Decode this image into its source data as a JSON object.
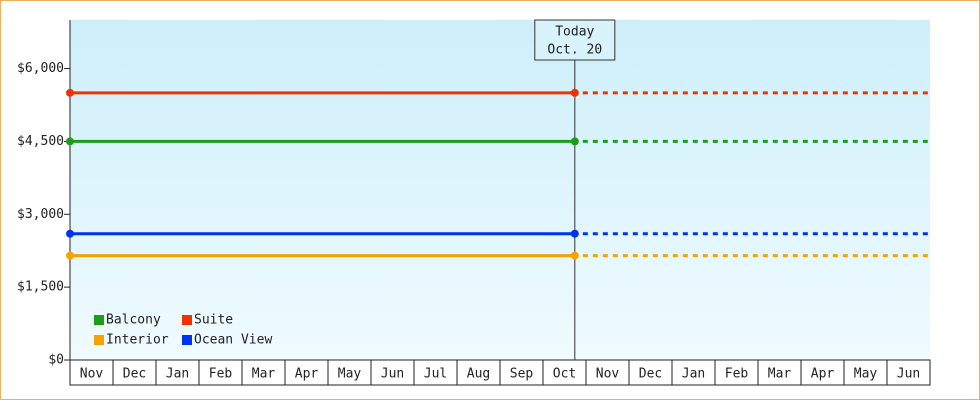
{
  "chart_data": {
    "type": "line",
    "categories": [
      "Nov",
      "Dec",
      "Jan",
      "Feb",
      "Mar",
      "Apr",
      "May",
      "Jun",
      "Jul",
      "Aug",
      "Sep",
      "Oct",
      "Nov",
      "Dec",
      "Jan",
      "Feb",
      "Mar",
      "Apr",
      "May",
      "Jun"
    ],
    "series": [
      {
        "name": "Balcony",
        "color": "#1a9e1a",
        "value": 4500
      },
      {
        "name": "Suite",
        "color": "#ee3300",
        "value": 5500
      },
      {
        "name": "Interior",
        "color": "#f5a300",
        "value": 2150
      },
      {
        "name": "Ocean View",
        "color": "#0033ee",
        "value": 2600
      }
    ],
    "annotation": [
      "Today",
      "Oct. 20"
    ],
    "ylim": [
      0,
      7000
    ],
    "yticks": [
      {
        "value": 0,
        "label": "$0"
      },
      {
        "value": 1500,
        "label": "$1,500"
      },
      {
        "value": 3000,
        "label": "$3,000"
      },
      {
        "value": 4500,
        "label": "$4,500"
      },
      {
        "value": 6000,
        "label": "$6,000"
      }
    ],
    "legend": "lower left"
  }
}
